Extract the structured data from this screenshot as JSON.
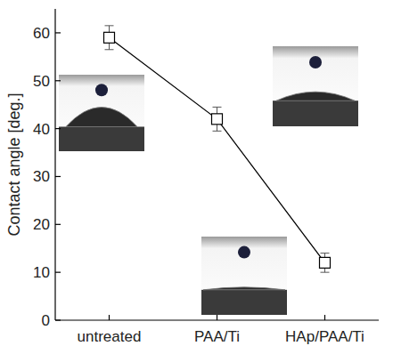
{
  "chart_data": {
    "type": "line",
    "y_label": "Contact angle [deg.]",
    "categories": [
      "untreated",
      "PAA/Ti",
      "HAp/PAA/Ti"
    ],
    "values": [
      59,
      42,
      12
    ],
    "errors": [
      2.5,
      2.5,
      2
    ],
    "color": "#000000",
    "marker": "square",
    "line_style": "solid",
    "ylim": [
      0,
      65
    ],
    "yticks": [
      0,
      10,
      20,
      30,
      40,
      50,
      60
    ],
    "grid": false
  }
}
